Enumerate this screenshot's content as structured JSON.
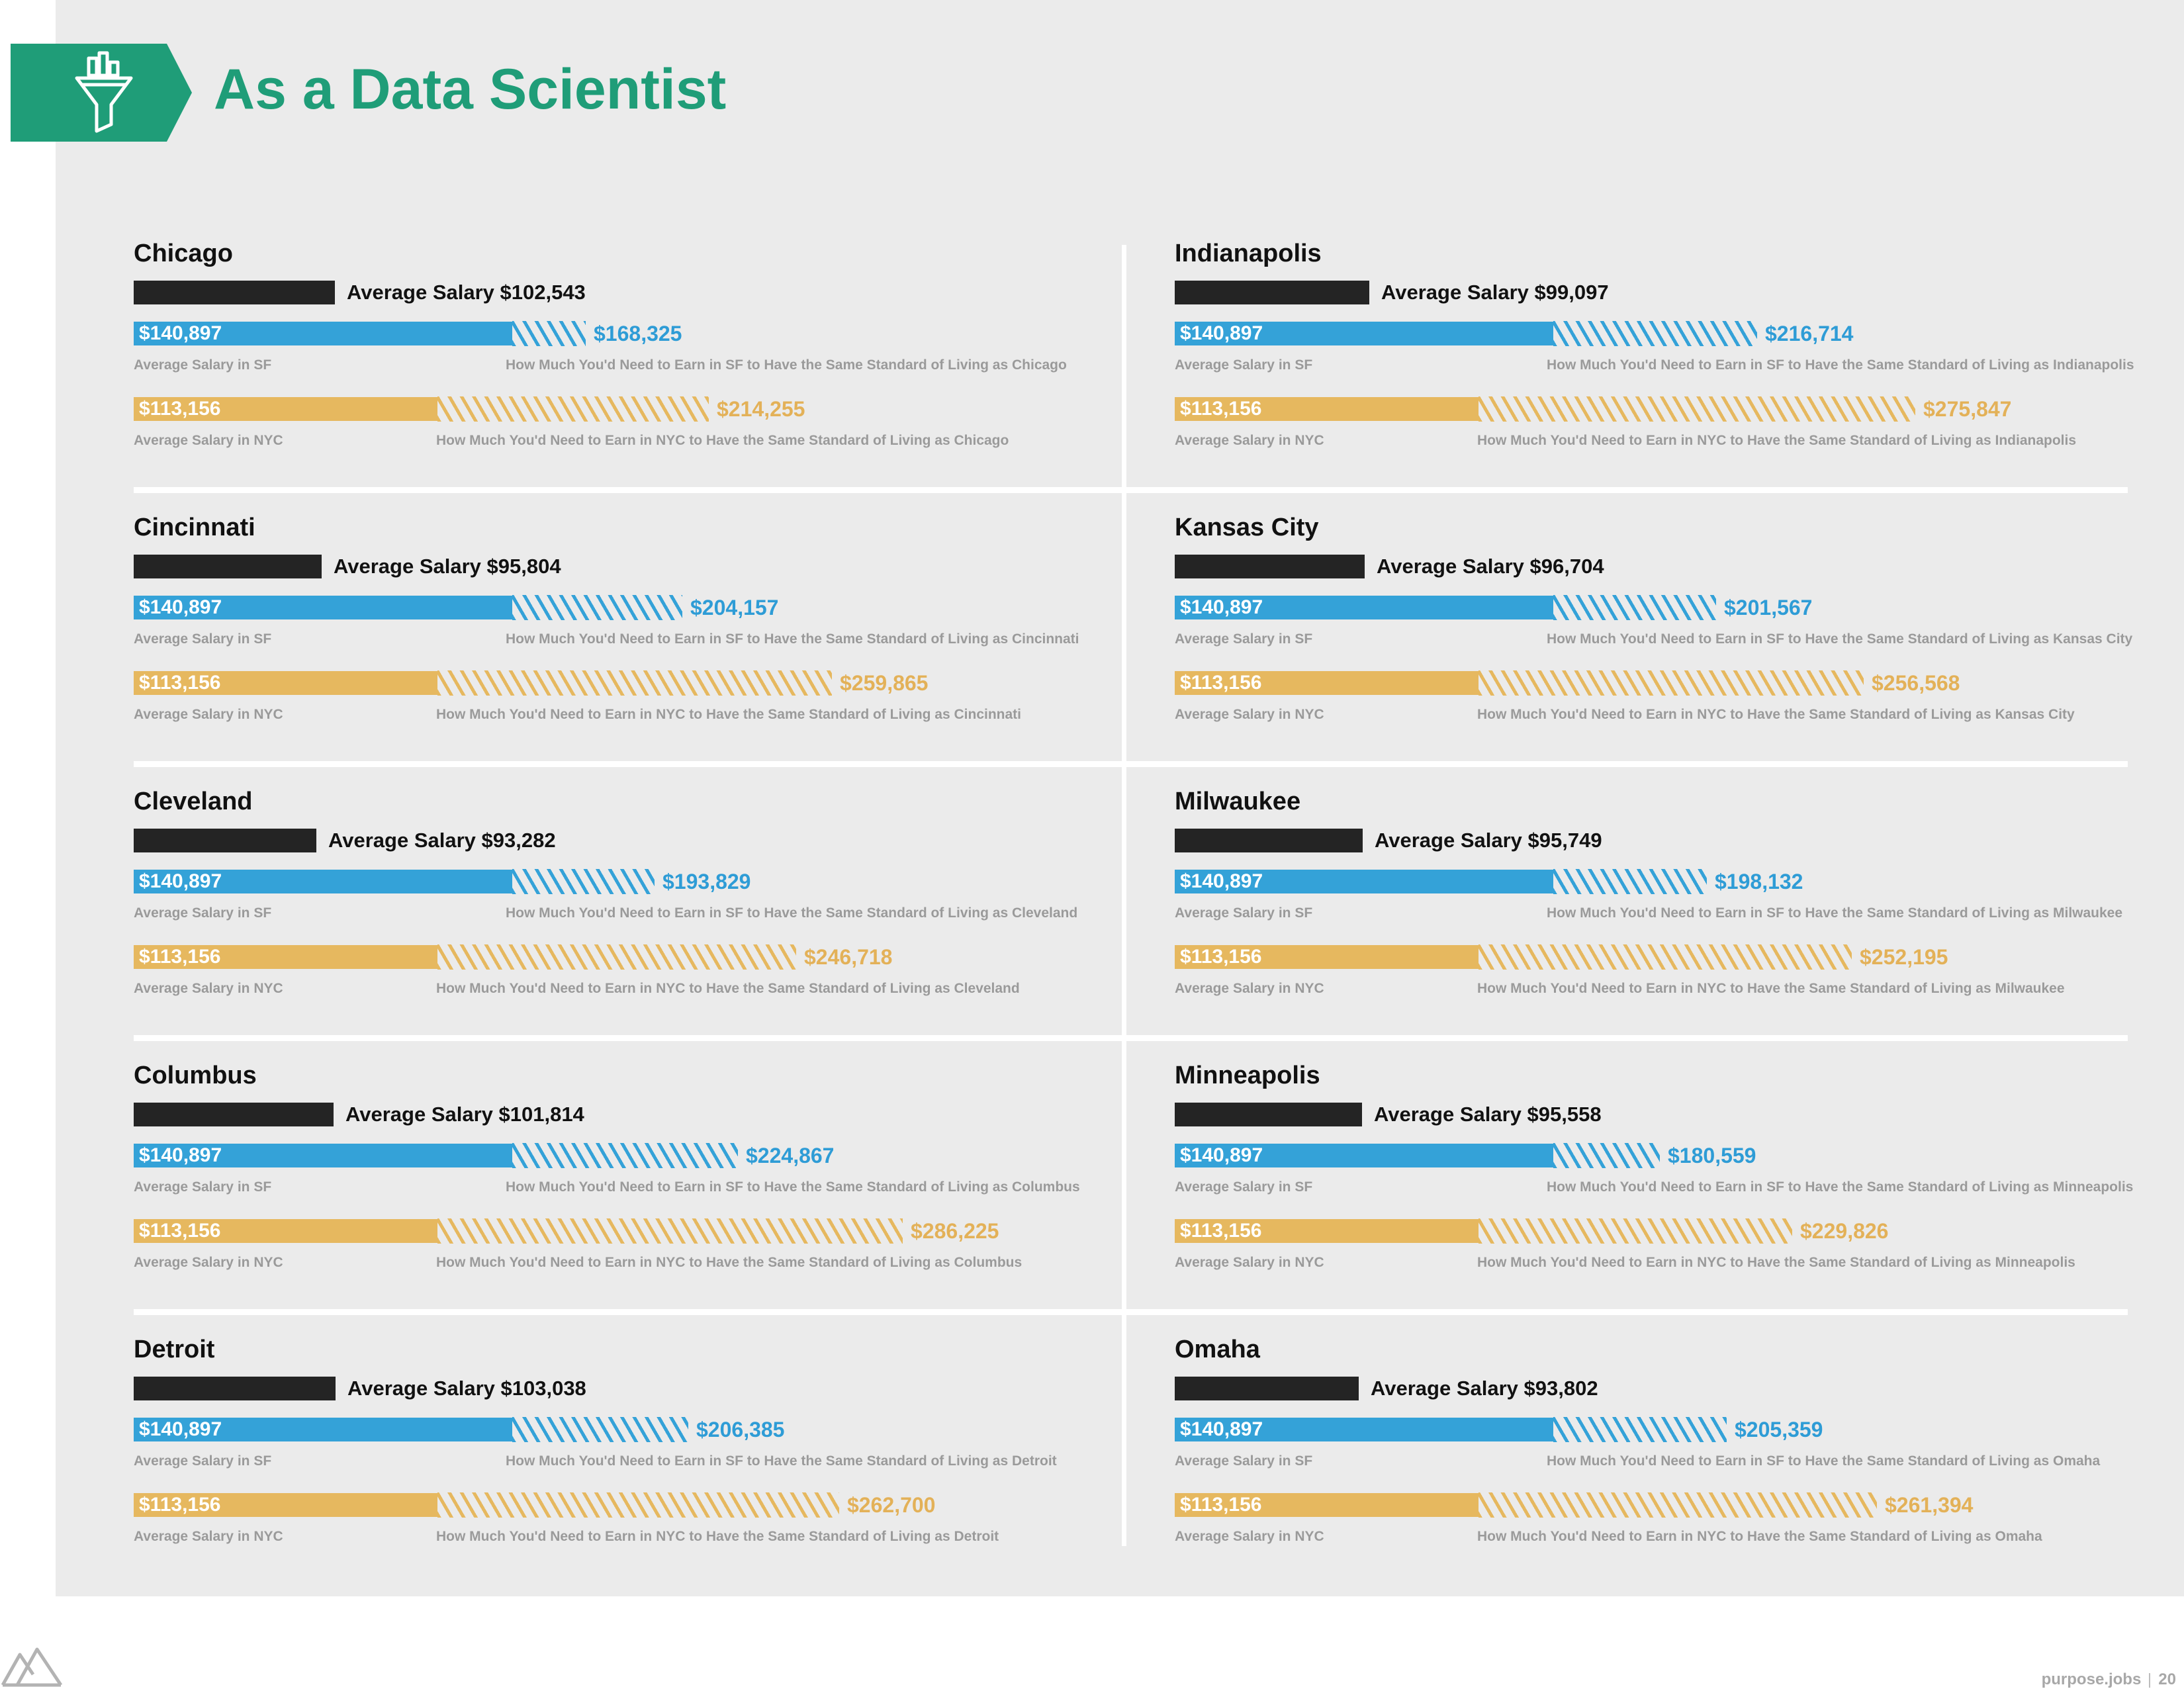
{
  "title": "As a Data Scientist",
  "labels": {
    "average_salary_prefix": "Average Salary",
    "sf_caption": "Average Salary in SF",
    "nyc_caption": "Average Salary in NYC",
    "sf_need_prefix": "How Much You'd Need to Earn in SF to Have the Same Standard of Living as",
    "nyc_need_prefix": "How Much You'd Need to Earn in NYC to Have the Same Standard of Living as"
  },
  "colors": {
    "black_bar": "#242424",
    "sf_blue": "#34a2d8",
    "nyc_gold": "#e6b85f",
    "title_green": "#1f9d78"
  },
  "footer": {
    "site": "purpose.jobs",
    "page": "20"
  },
  "icons": {
    "banner": "funnel-chart-icon",
    "logo": "mountain-logo-icon"
  },
  "chart_data": {
    "type": "bar",
    "title": "As a Data Scientist",
    "sf_average": 140897,
    "nyc_average": 113156,
    "cities": [
      {
        "city": "Chicago",
        "avg": 102543,
        "avg_label": "$102,543",
        "sf_label": "$140,897",
        "sf_need": 168325,
        "sf_need_label": "$168,325",
        "nyc_label": "$113,156",
        "nyc_need": 214255,
        "nyc_need_label": "$214,255"
      },
      {
        "city": "Cincinnati",
        "avg": 95804,
        "avg_label": "$95,804",
        "sf_label": "$140,897",
        "sf_need": 204157,
        "sf_need_label": "$204,157",
        "nyc_label": "$113,156",
        "nyc_need": 259865,
        "nyc_need_label": "$259,865"
      },
      {
        "city": "Cleveland",
        "avg": 93282,
        "avg_label": "$93,282",
        "sf_label": "$140,897",
        "sf_need": 193829,
        "sf_need_label": "$193,829",
        "nyc_label": "$113,156",
        "nyc_need": 246718,
        "nyc_need_label": "$246,718"
      },
      {
        "city": "Columbus",
        "avg": 101814,
        "avg_label": "$101,814",
        "sf_label": "$140,897",
        "sf_need": 224867,
        "sf_need_label": "$224,867",
        "nyc_label": "$113,156",
        "nyc_need": 286225,
        "nyc_need_label": "$286,225"
      },
      {
        "city": "Detroit",
        "avg": 103038,
        "avg_label": "$103,038",
        "sf_label": "$140,897",
        "sf_need": 206385,
        "sf_need_label": "$206,385",
        "nyc_label": "$113,156",
        "nyc_need": 262700,
        "nyc_need_label": "$262,700"
      },
      {
        "city": "Indianapolis",
        "avg": 99097,
        "avg_label": "$99,097",
        "sf_label": "$140,897",
        "sf_need": 216714,
        "sf_need_label": "$216,714",
        "nyc_label": "$113,156",
        "nyc_need": 275847,
        "nyc_need_label": "$275,847"
      },
      {
        "city": "Kansas City",
        "avg": 96704,
        "avg_label": "$96,704",
        "sf_label": "$140,897",
        "sf_need": 201567,
        "sf_need_label": "$201,567",
        "nyc_label": "$113,156",
        "nyc_need": 256568,
        "nyc_need_label": "$256,568"
      },
      {
        "city": "Milwaukee",
        "avg": 95749,
        "avg_label": "$95,749",
        "sf_label": "$140,897",
        "sf_need": 198132,
        "sf_need_label": "$198,132",
        "nyc_label": "$113,156",
        "nyc_need": 252195,
        "nyc_need_label": "$252,195"
      },
      {
        "city": "Minneapolis",
        "avg": 95558,
        "avg_label": "$95,558",
        "sf_label": "$140,897",
        "sf_need": 180559,
        "sf_need_label": "$180,559",
        "nyc_label": "$113,156",
        "nyc_need": 229826,
        "nyc_need_label": "$229,826"
      },
      {
        "city": "Omaha",
        "avg": 93802,
        "avg_label": "$93,802",
        "sf_label": "$140,897",
        "sf_need": 205359,
        "sf_need_label": "$205,359",
        "nyc_label": "$113,156",
        "nyc_need": 261394,
        "nyc_need_label": "$261,394"
      }
    ]
  }
}
